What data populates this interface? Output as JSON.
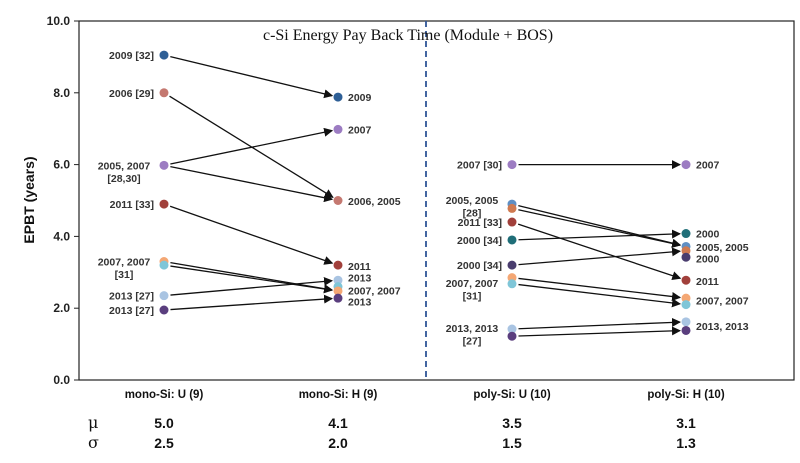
{
  "chart_data": {
    "type": "scatter",
    "title": "c-Si Energy Pay Back Time (Module + BOS)",
    "ylabel": "EPBT (years)",
    "ylim": [
      0,
      10
    ],
    "yticks": [
      "0.0",
      "2.0",
      "4.0",
      "6.0",
      "8.0",
      "10.0"
    ],
    "categories": [
      "mono-Si: U (9)",
      "mono-Si: H (9)",
      "poly-Si: U (10)",
      "poly-Si: H (10)"
    ],
    "stats": {
      "mu_symbol": "μ",
      "sigma_symbol": "σ",
      "mu": [
        "5.0",
        "4.1",
        "3.5",
        "3.1"
      ],
      "sigma": [
        "2.5",
        "2.0",
        "1.5",
        "1.3"
      ]
    },
    "points": [
      {
        "cat": 0,
        "y": 9.05,
        "color": "#2e5f96"
      },
      {
        "cat": 0,
        "y": 8.0,
        "color": "#c47870"
      },
      {
        "cat": 0,
        "y": 5.98,
        "color": "#9c7cc2"
      },
      {
        "cat": 0,
        "y": 4.9,
        "color": "#a1403b"
      },
      {
        "cat": 0,
        "y": 3.3,
        "color": "#f4a774"
      },
      {
        "cat": 0,
        "y": 3.2,
        "color": "#7fc6d8"
      },
      {
        "cat": 0,
        "y": 2.35,
        "color": "#a9c4e2"
      },
      {
        "cat": 0,
        "y": 1.95,
        "color": "#5a3e7e"
      },
      {
        "cat": 1,
        "y": 7.88,
        "color": "#2e5f96"
      },
      {
        "cat": 1,
        "y": 6.98,
        "color": "#9c7cc2"
      },
      {
        "cat": 1,
        "y": 5.0,
        "color": "#c47870"
      },
      {
        "cat": 1,
        "y": 3.2,
        "color": "#a1403b"
      },
      {
        "cat": 1,
        "y": 2.78,
        "color": "#a9c4e2"
      },
      {
        "cat": 1,
        "y": 2.6,
        "color": "#7fc6d8"
      },
      {
        "cat": 1,
        "y": 2.48,
        "color": "#f4a774"
      },
      {
        "cat": 1,
        "y": 2.28,
        "color": "#5a3e7e"
      },
      {
        "cat": 2,
        "y": 6.0,
        "color": "#9c7cc2"
      },
      {
        "cat": 2,
        "y": 4.9,
        "color": "#5f8fc4"
      },
      {
        "cat": 2,
        "y": 4.78,
        "color": "#d07a50"
      },
      {
        "cat": 2,
        "y": 4.4,
        "color": "#a1403b"
      },
      {
        "cat": 2,
        "y": 3.9,
        "color": "#1f6e78"
      },
      {
        "cat": 2,
        "y": 3.2,
        "color": "#4a3d6e"
      },
      {
        "cat": 2,
        "y": 2.85,
        "color": "#f4a774"
      },
      {
        "cat": 2,
        "y": 2.68,
        "color": "#7fc6d8"
      },
      {
        "cat": 2,
        "y": 1.42,
        "color": "#a9c4e2"
      },
      {
        "cat": 2,
        "y": 1.22,
        "color": "#5a3e7e"
      },
      {
        "cat": 3,
        "y": 6.0,
        "color": "#9c7cc2"
      },
      {
        "cat": 3,
        "y": 4.08,
        "color": "#1f6e78"
      },
      {
        "cat": 3,
        "y": 3.72,
        "color": "#5f8fc4"
      },
      {
        "cat": 3,
        "y": 3.6,
        "color": "#d07a50"
      },
      {
        "cat": 3,
        "y": 3.42,
        "color": "#4a3d6e"
      },
      {
        "cat": 3,
        "y": 2.78,
        "color": "#a1403b"
      },
      {
        "cat": 3,
        "y": 2.28,
        "color": "#f4a774"
      },
      {
        "cat": 3,
        "y": 2.1,
        "color": "#7fc6d8"
      },
      {
        "cat": 3,
        "y": 1.62,
        "color": "#a9c4e2"
      },
      {
        "cat": 3,
        "y": 1.38,
        "color": "#5a3e7e"
      }
    ],
    "arrows": [
      [
        0,
        8
      ],
      [
        1,
        10
      ],
      [
        2,
        9
      ],
      [
        2,
        10
      ],
      [
        3,
        11
      ],
      [
        4,
        14
      ],
      [
        5,
        14
      ],
      [
        6,
        12
      ],
      [
        7,
        15
      ],
      [
        16,
        26
      ],
      [
        17,
        28
      ],
      [
        18,
        28
      ],
      [
        19,
        31
      ],
      [
        20,
        27
      ],
      [
        21,
        29
      ],
      [
        22,
        32
      ],
      [
        23,
        33
      ],
      [
        24,
        34
      ],
      [
        25,
        35
      ]
    ],
    "labels": [
      {
        "cat": 0,
        "side": "left",
        "y": 9.05,
        "lines": [
          "2009 [32]"
        ]
      },
      {
        "cat": 0,
        "side": "left",
        "y": 8.0,
        "lines": [
          "2006 [29]"
        ]
      },
      {
        "cat": 0,
        "side": "left",
        "y": 5.98,
        "lines": [
          "2005, 2007",
          "[28,30]"
        ]
      },
      {
        "cat": 0,
        "side": "left",
        "y": 4.9,
        "lines": [
          "2011 [33]"
        ]
      },
      {
        "cat": 0,
        "side": "left",
        "y": 3.3,
        "lines": [
          "2007, 2007",
          "[31]"
        ]
      },
      {
        "cat": 0,
        "side": "left",
        "y": 2.35,
        "lines": [
          "2013 [27]"
        ]
      },
      {
        "cat": 0,
        "side": "left",
        "y": 1.95,
        "lines": [
          "2013 [27]"
        ]
      },
      {
        "cat": 1,
        "side": "right",
        "y": 7.88,
        "lines": [
          "2009"
        ]
      },
      {
        "cat": 1,
        "side": "right",
        "y": 6.98,
        "lines": [
          "2007"
        ]
      },
      {
        "cat": 1,
        "side": "right",
        "y": 4.98,
        "lines": [
          "2006, 2005"
        ]
      },
      {
        "cat": 1,
        "side": "right",
        "y": 3.18,
        "lines": [
          "2011"
        ]
      },
      {
        "cat": 1,
        "side": "right",
        "y": 2.85,
        "lines": [
          "2013"
        ]
      },
      {
        "cat": 1,
        "side": "right",
        "y": 2.5,
        "lines": [
          "2007, 2007"
        ]
      },
      {
        "cat": 1,
        "side": "right",
        "y": 2.18,
        "lines": [
          "2013"
        ]
      },
      {
        "cat": 2,
        "side": "left",
        "y": 6.0,
        "lines": [
          "2007 [30]"
        ]
      },
      {
        "cat": 2,
        "side": "left",
        "y": 5.02,
        "lines": [
          "2005, 2005",
          "[28]"
        ]
      },
      {
        "cat": 2,
        "side": "left",
        "y": 4.4,
        "lines": [
          "2011 [33]"
        ]
      },
      {
        "cat": 2,
        "side": "left",
        "y": 3.9,
        "lines": [
          "2000 [34]"
        ]
      },
      {
        "cat": 2,
        "side": "left",
        "y": 3.2,
        "lines": [
          "2000 [34]"
        ]
      },
      {
        "cat": 2,
        "side": "left",
        "y": 2.7,
        "lines": [
          "2007, 2007",
          "[31]"
        ]
      },
      {
        "cat": 2,
        "side": "left",
        "y": 1.45,
        "lines": [
          "2013, 2013",
          "[27]"
        ]
      },
      {
        "cat": 3,
        "side": "right",
        "y": 6.0,
        "lines": [
          "2007"
        ]
      },
      {
        "cat": 3,
        "side": "right",
        "y": 4.08,
        "lines": [
          "2000"
        ]
      },
      {
        "cat": 3,
        "side": "right",
        "y": 3.7,
        "lines": [
          "2005, 2005"
        ]
      },
      {
        "cat": 3,
        "side": "right",
        "y": 3.38,
        "lines": [
          "2000"
        ]
      },
      {
        "cat": 3,
        "side": "right",
        "y": 2.76,
        "lines": [
          "2011"
        ]
      },
      {
        "cat": 3,
        "side": "right",
        "y": 2.22,
        "lines": [
          "2007, 2007"
        ]
      },
      {
        "cat": 3,
        "side": "right",
        "y": 1.5,
        "lines": [
          "2013, 2013"
        ]
      }
    ],
    "divider_color": "#2f5597",
    "arrow_color": "#111111"
  }
}
